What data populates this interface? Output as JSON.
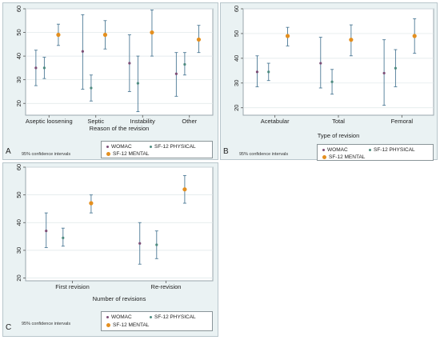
{
  "colors": {
    "womac": "#7d4e76",
    "sf12_physical": "#4f8c80",
    "sf12_mental": "#e48f1f",
    "ci_bar": "#4d7a96"
  },
  "legend": {
    "womac": "WOMAC",
    "sf12_physical": "SF-12 PHYSICAL",
    "sf12_mental": "SF-12 MENTAL"
  },
  "ci_note": "95% confidence intervals",
  "chart_data": [
    {
      "panel": "A",
      "type": "scatter",
      "xlabel": "Reason of the revision",
      "ylim": [
        15,
        60
      ],
      "yticks": [
        20,
        30,
        40,
        50,
        60
      ],
      "categories": [
        "Aseptic loosening",
        "Septic",
        "Instability",
        "Other"
      ],
      "series": [
        {
          "name": "WOMAC",
          "values": [
            35,
            42,
            37,
            32.5
          ],
          "ci": [
            [
              27.5,
              42.5
            ],
            [
              26,
              57.5
            ],
            [
              25,
              49
            ],
            [
              23,
              41.5
            ]
          ]
        },
        {
          "name": "SF-12 PHYSICAL",
          "values": [
            35,
            26.5,
            28.5,
            36.5
          ],
          "ci": [
            [
              30.5,
              39.5
            ],
            [
              21,
              32
            ],
            [
              16.5,
              40
            ],
            [
              32,
              41.5
            ]
          ]
        },
        {
          "name": "SF-12 MENTAL",
          "values": [
            49,
            49,
            50,
            47
          ],
          "ci": [
            [
              44.5,
              53.5
            ],
            [
              43,
              55
            ],
            [
              40,
              59.5
            ],
            [
              41.5,
              53
            ]
          ]
        }
      ]
    },
    {
      "panel": "B",
      "type": "scatter",
      "xlabel": "Type of revision",
      "ylim": [
        17,
        60
      ],
      "yticks": [
        20,
        30,
        40,
        50,
        60
      ],
      "categories": [
        "Acetabular",
        "Total",
        "Femoral"
      ],
      "series": [
        {
          "name": "WOMAC",
          "values": [
            34.5,
            38,
            34
          ],
          "ci": [
            [
              28.5,
              41
            ],
            [
              28,
              48.5
            ],
            [
              21,
              47.5
            ]
          ]
        },
        {
          "name": "SF-12 PHYSICAL",
          "values": [
            34.5,
            30.5,
            36
          ],
          "ci": [
            [
              31,
              38
            ],
            [
              25.5,
              35.5
            ],
            [
              28.5,
              43.5
            ]
          ]
        },
        {
          "name": "SF-12 MENTAL",
          "values": [
            49,
            47.5,
            49
          ],
          "ci": [
            [
              45,
              52.5
            ],
            [
              41,
              53.5
            ],
            [
              42,
              56
            ]
          ]
        }
      ]
    },
    {
      "panel": "C",
      "type": "scatter",
      "xlabel": "Number of revisions",
      "ylim": [
        19,
        60
      ],
      "yticks": [
        20,
        30,
        40,
        50,
        60
      ],
      "categories": [
        "First revision",
        "Re-revision"
      ],
      "series": [
        {
          "name": "WOMAC",
          "values": [
            37,
            32.5
          ],
          "ci": [
            [
              31,
              43.5
            ],
            [
              25,
              40
            ]
          ]
        },
        {
          "name": "SF-12 PHYSICAL",
          "values": [
            34.5,
            32
          ],
          "ci": [
            [
              31.5,
              38
            ],
            [
              27,
              37
            ]
          ]
        },
        {
          "name": "SF-12 MENTAL",
          "values": [
            47,
            52
          ],
          "ci": [
            [
              43.5,
              50
            ],
            [
              47,
              57
            ]
          ]
        }
      ]
    }
  ]
}
